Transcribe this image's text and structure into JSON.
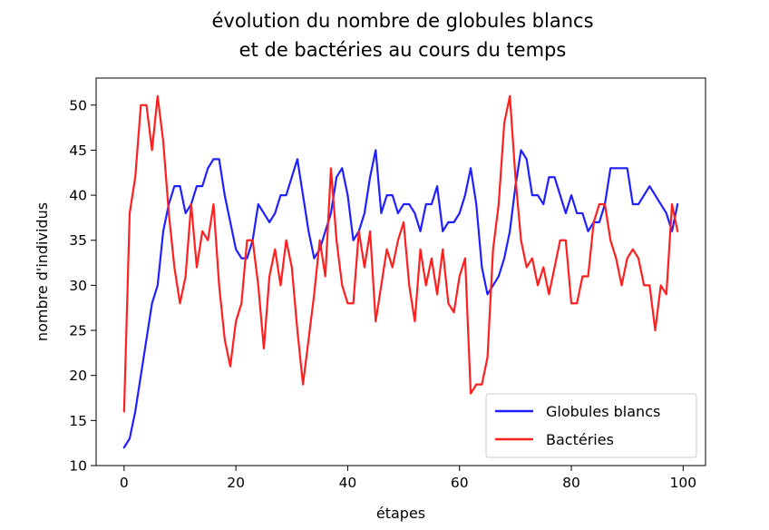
{
  "chart_data": {
    "type": "line",
    "title_lines": [
      "évolution du nombre de globules blancs",
      "et de bactéries au cours du temps"
    ],
    "xlabel": "étapes",
    "ylabel": "nombre d'individus",
    "xlim": [
      -5,
      104
    ],
    "ylim": [
      10,
      53
    ],
    "xticks": [
      0,
      20,
      40,
      60,
      80,
      100
    ],
    "yticks": [
      10,
      15,
      20,
      25,
      30,
      35,
      40,
      45,
      50
    ],
    "grid": false,
    "legend_position": "lower-right",
    "series": [
      {
        "name": "Globules blancs",
        "color": "#1f1fff",
        "values": [
          12,
          13,
          16,
          20,
          24,
          28,
          30,
          36,
          39,
          41,
          41,
          38,
          39,
          41,
          41,
          43,
          44,
          44,
          40,
          37,
          34,
          33,
          33,
          35,
          39,
          38,
          37,
          38,
          40,
          40,
          42,
          44,
          40,
          36,
          33,
          34,
          36,
          38,
          42,
          43,
          40,
          35,
          36,
          38,
          42,
          45,
          38,
          40,
          40,
          38,
          39,
          39,
          38,
          36,
          39,
          39,
          41,
          36,
          37,
          37,
          38,
          40,
          43,
          39,
          32,
          29,
          30,
          31,
          33,
          36,
          41,
          45,
          44,
          40,
          40,
          39,
          42,
          42,
          40,
          38,
          40,
          38,
          38,
          36,
          37,
          37,
          39,
          43,
          43,
          43,
          43,
          39,
          39,
          40,
          41,
          40,
          39,
          38,
          36,
          39
        ]
      },
      {
        "name": "Bactéries",
        "color": "#ff1f1f",
        "values": [
          16,
          38,
          42,
          50,
          50,
          45,
          51,
          46,
          38,
          32,
          28,
          31,
          39,
          32,
          36,
          35,
          39,
          30,
          24,
          21,
          26,
          28,
          35,
          35,
          30,
          23,
          31,
          34,
          30,
          35,
          32,
          25,
          19,
          24,
          29,
          35,
          31,
          43,
          35,
          30,
          28,
          28,
          36,
          32,
          36,
          26,
          30,
          34,
          32,
          35,
          37,
          30,
          26,
          34,
          30,
          33,
          29,
          34,
          28,
          27,
          31,
          33,
          18,
          19,
          19,
          22,
          34,
          39,
          48,
          51,
          42,
          35,
          32,
          33,
          30,
          32,
          29,
          32,
          35,
          35,
          28,
          28,
          31,
          31,
          37,
          39,
          39,
          35,
          33,
          30,
          33,
          34,
          33,
          30,
          30,
          25,
          30,
          29,
          39,
          36
        ]
      }
    ]
  }
}
